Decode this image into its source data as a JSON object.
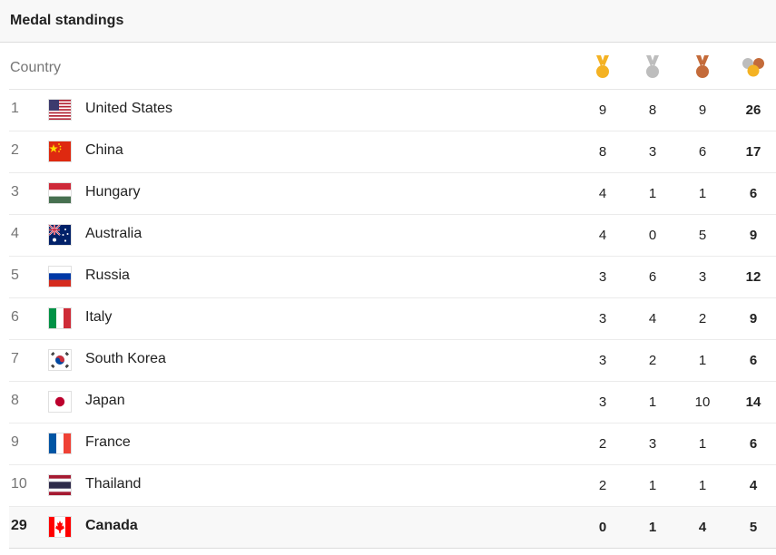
{
  "header": {
    "title": "Medal standings"
  },
  "columns": {
    "country": "Country",
    "icons": [
      "gold-medal-icon",
      "silver-medal-icon",
      "bronze-medal-icon",
      "total-medals-icon"
    ]
  },
  "colors": {
    "gold": "#f4b223",
    "silver": "#bdbdbd",
    "bronze": "#c46b3a"
  },
  "rows": [
    {
      "rank": "1",
      "country": "United States",
      "flag": "us",
      "gold": "9",
      "silver": "8",
      "bronze": "9",
      "total": "26"
    },
    {
      "rank": "2",
      "country": "China",
      "flag": "cn",
      "gold": "8",
      "silver": "3",
      "bronze": "6",
      "total": "17"
    },
    {
      "rank": "3",
      "country": "Hungary",
      "flag": "hu",
      "gold": "4",
      "silver": "1",
      "bronze": "1",
      "total": "6"
    },
    {
      "rank": "4",
      "country": "Australia",
      "flag": "au",
      "gold": "4",
      "silver": "0",
      "bronze": "5",
      "total": "9"
    },
    {
      "rank": "5",
      "country": "Russia",
      "flag": "ru",
      "gold": "3",
      "silver": "6",
      "bronze": "3",
      "total": "12"
    },
    {
      "rank": "6",
      "country": "Italy",
      "flag": "it",
      "gold": "3",
      "silver": "4",
      "bronze": "2",
      "total": "9"
    },
    {
      "rank": "7",
      "country": "South Korea",
      "flag": "kr",
      "gold": "3",
      "silver": "2",
      "bronze": "1",
      "total": "6"
    },
    {
      "rank": "8",
      "country": "Japan",
      "flag": "jp",
      "gold": "3",
      "silver": "1",
      "bronze": "10",
      "total": "14"
    },
    {
      "rank": "9",
      "country": "France",
      "flag": "fr",
      "gold": "2",
      "silver": "3",
      "bronze": "1",
      "total": "6"
    },
    {
      "rank": "10",
      "country": "Thailand",
      "flag": "th",
      "gold": "2",
      "silver": "1",
      "bronze": "1",
      "total": "4"
    },
    {
      "rank": "29",
      "country": "Canada",
      "flag": "ca",
      "gold": "0",
      "silver": "1",
      "bronze": "4",
      "total": "5",
      "highlight": true
    }
  ]
}
